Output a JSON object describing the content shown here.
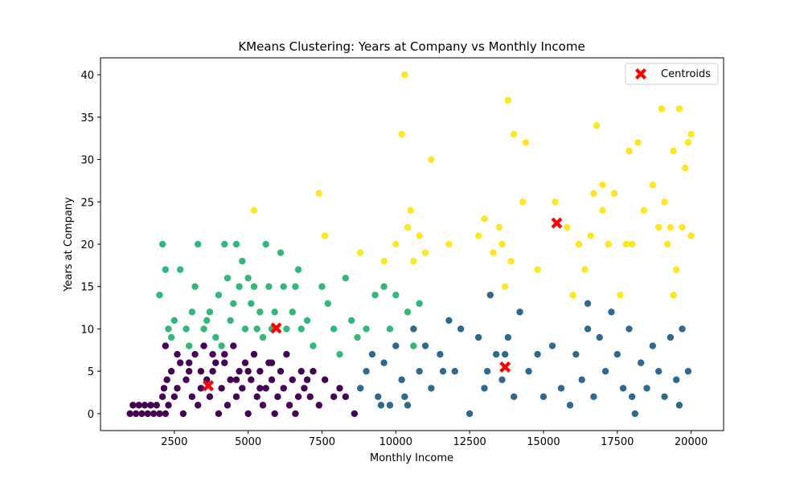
{
  "chart_data": {
    "type": "scatter",
    "title": "KMeans Clustering: Years at Company vs Monthly Income",
    "xlabel": "Monthly Income",
    "ylabel": "Years at Company",
    "xlim": [
      0,
      21100
    ],
    "ylim": [
      -2,
      42
    ],
    "x_ticks": [
      2500,
      5000,
      7500,
      10000,
      12500,
      15000,
      17500,
      20000
    ],
    "y_ticks": [
      0,
      5,
      10,
      15,
      20,
      25,
      30,
      35,
      40
    ],
    "grid": false,
    "legend_position": "top-right",
    "legend": [
      "Centroids"
    ],
    "colors": {
      "cluster_0": "#440154",
      "cluster_1": "#31688e",
      "cluster_2": "#35b779",
      "cluster_3": "#fde725",
      "centroid": "#ff0000"
    },
    "clusters": [
      {
        "color": "#440154",
        "points": [
          [
            1000,
            0
          ],
          [
            1100,
            1
          ],
          [
            1200,
            0
          ],
          [
            1300,
            1
          ],
          [
            1400,
            0
          ],
          [
            1500,
            1
          ],
          [
            1600,
            0
          ],
          [
            1700,
            1
          ],
          [
            1800,
            0
          ],
          [
            1900,
            1
          ],
          [
            2000,
            0
          ],
          [
            2100,
            2
          ],
          [
            2150,
            3
          ],
          [
            2200,
            0
          ],
          [
            2250,
            4
          ],
          [
            2300,
            1
          ],
          [
            2400,
            5
          ],
          [
            2500,
            2
          ],
          [
            2600,
            3
          ],
          [
            2700,
            6
          ],
          [
            2800,
            0
          ],
          [
            2900,
            4
          ],
          [
            3000,
            5
          ],
          [
            3100,
            2
          ],
          [
            3200,
            7
          ],
          [
            3300,
            1
          ],
          [
            3400,
            3
          ],
          [
            3500,
            8
          ],
          [
            3600,
            4
          ],
          [
            3700,
            2
          ],
          [
            3800,
            5
          ],
          [
            3900,
            6
          ],
          [
            4000,
            0
          ],
          [
            4100,
            3
          ],
          [
            4200,
            7
          ],
          [
            4300,
            1
          ],
          [
            4400,
            4
          ],
          [
            4500,
            8
          ],
          [
            4600,
            2
          ],
          [
            4700,
            5
          ],
          [
            4800,
            3
          ],
          [
            4900,
            6
          ],
          [
            5000,
            0
          ],
          [
            5100,
            4
          ],
          [
            5200,
            7
          ],
          [
            5300,
            2
          ],
          [
            5400,
            5
          ],
          [
            5500,
            1
          ],
          [
            5600,
            3
          ],
          [
            5700,
            6
          ],
          [
            5800,
            4
          ],
          [
            5900,
            0
          ],
          [
            6000,
            2
          ],
          [
            6100,
            5
          ],
          [
            6200,
            3
          ],
          [
            6300,
            7
          ],
          [
            6400,
            1
          ],
          [
            6500,
            4
          ],
          [
            6600,
            0
          ],
          [
            6700,
            2
          ],
          [
            6800,
            5
          ],
          [
            6900,
            3
          ],
          [
            7000,
            4
          ],
          [
            7100,
            2
          ],
          [
            7200,
            5
          ],
          [
            7400,
            1
          ],
          [
            7600,
            4
          ],
          [
            7900,
            2
          ],
          [
            8100,
            3
          ],
          [
            8300,
            2
          ],
          [
            8600,
            0
          ],
          [
            2200,
            8
          ],
          [
            2600,
            7
          ],
          [
            3000,
            6
          ],
          [
            3400,
            5
          ],
          [
            3800,
            7
          ],
          [
            4200,
            6
          ],
          [
            4600,
            4
          ],
          [
            5000,
            5
          ],
          [
            5400,
            3
          ],
          [
            5800,
            6
          ]
        ]
      },
      {
        "color": "#31688e",
        "points": [
          [
            8800,
            3
          ],
          [
            9000,
            5
          ],
          [
            9200,
            7
          ],
          [
            9400,
            2
          ],
          [
            9600,
            6
          ],
          [
            9800,
            1
          ],
          [
            10000,
            8
          ],
          [
            10200,
            4
          ],
          [
            10400,
            1
          ],
          [
            10600,
            10
          ],
          [
            10800,
            5
          ],
          [
            11000,
            8
          ],
          [
            11200,
            3
          ],
          [
            11500,
            7
          ],
          [
            11800,
            11
          ],
          [
            12000,
            5
          ],
          [
            12200,
            10
          ],
          [
            12500,
            0
          ],
          [
            12800,
            9
          ],
          [
            13000,
            3
          ],
          [
            13200,
            14
          ],
          [
            13400,
            7
          ],
          [
            13600,
            4
          ],
          [
            13800,
            9
          ],
          [
            14000,
            2
          ],
          [
            14200,
            12
          ],
          [
            14500,
            5
          ],
          [
            14800,
            7
          ],
          [
            15000,
            2
          ],
          [
            15300,
            8
          ],
          [
            15600,
            3
          ],
          [
            15900,
            1
          ],
          [
            16100,
            7
          ],
          [
            16300,
            4
          ],
          [
            16500,
            10
          ],
          [
            16700,
            2
          ],
          [
            16900,
            9
          ],
          [
            17100,
            5
          ],
          [
            17300,
            12
          ],
          [
            17500,
            7
          ],
          [
            17700,
            3
          ],
          [
            17900,
            10
          ],
          [
            18100,
            0
          ],
          [
            18300,
            6
          ],
          [
            18500,
            3
          ],
          [
            18700,
            8
          ],
          [
            18900,
            5
          ],
          [
            19100,
            2
          ],
          [
            19300,
            9
          ],
          [
            19500,
            4
          ],
          [
            19700,
            10
          ],
          [
            19900,
            5
          ],
          [
            9500,
            1
          ],
          [
            10300,
            2
          ],
          [
            11600,
            5
          ],
          [
            13100,
            5
          ],
          [
            13700,
            7
          ],
          [
            16500,
            13
          ],
          [
            18000,
            2
          ],
          [
            19600,
            1
          ]
        ]
      },
      {
        "color": "#35b779",
        "points": [
          [
            2000,
            14
          ],
          [
            2100,
            20
          ],
          [
            2200,
            17
          ],
          [
            2300,
            10
          ],
          [
            2500,
            11
          ],
          [
            2700,
            17
          ],
          [
            2900,
            10
          ],
          [
            3100,
            12
          ],
          [
            3200,
            15
          ],
          [
            3300,
            20
          ],
          [
            3500,
            10
          ],
          [
            3700,
            12
          ],
          [
            3900,
            9
          ],
          [
            4000,
            14
          ],
          [
            4200,
            20
          ],
          [
            4300,
            16
          ],
          [
            4400,
            11
          ],
          [
            4500,
            13
          ],
          [
            4600,
            20
          ],
          [
            4700,
            15
          ],
          [
            4800,
            18
          ],
          [
            4900,
            10
          ],
          [
            5000,
            16
          ],
          [
            5100,
            13
          ],
          [
            5200,
            15
          ],
          [
            5300,
            10
          ],
          [
            5400,
            12
          ],
          [
            5500,
            9
          ],
          [
            5600,
            20
          ],
          [
            5700,
            15
          ],
          [
            5800,
            10
          ],
          [
            5900,
            12
          ],
          [
            6100,
            19
          ],
          [
            6200,
            15
          ],
          [
            6300,
            10
          ],
          [
            6500,
            12
          ],
          [
            6600,
            15
          ],
          [
            6800,
            10
          ],
          [
            7000,
            11
          ],
          [
            7200,
            8
          ],
          [
            7500,
            15
          ],
          [
            7700,
            13
          ],
          [
            7900,
            10
          ],
          [
            8100,
            7
          ],
          [
            8300,
            16
          ],
          [
            8500,
            11
          ],
          [
            8700,
            9
          ],
          [
            9000,
            10
          ],
          [
            9300,
            14
          ],
          [
            9600,
            15
          ],
          [
            9800,
            10
          ],
          [
            10000,
            14
          ],
          [
            10400,
            12
          ],
          [
            10600,
            8
          ],
          [
            10800,
            13
          ],
          [
            2400,
            9
          ],
          [
            3000,
            8
          ],
          [
            3600,
            11
          ],
          [
            4100,
            8
          ],
          [
            6700,
            17
          ]
        ]
      },
      {
        "color": "#fde725",
        "points": [
          [
            5200,
            24
          ],
          [
            7400,
            26
          ],
          [
            7600,
            21
          ],
          [
            8800,
            19
          ],
          [
            9600,
            18
          ],
          [
            10000,
            20
          ],
          [
            10200,
            33
          ],
          [
            10300,
            40
          ],
          [
            10400,
            22
          ],
          [
            10500,
            24
          ],
          [
            10600,
            18
          ],
          [
            10800,
            21
          ],
          [
            11000,
            19
          ],
          [
            11200,
            30
          ],
          [
            11800,
            20
          ],
          [
            12800,
            21
          ],
          [
            13000,
            23
          ],
          [
            13300,
            19
          ],
          [
            13500,
            22
          ],
          [
            13700,
            15
          ],
          [
            13800,
            37
          ],
          [
            13900,
            18
          ],
          [
            14000,
            33
          ],
          [
            14300,
            25
          ],
          [
            14400,
            32
          ],
          [
            14800,
            17
          ],
          [
            15400,
            25
          ],
          [
            15800,
            22
          ],
          [
            16000,
            14
          ],
          [
            16200,
            20
          ],
          [
            16400,
            17
          ],
          [
            16600,
            21
          ],
          [
            16800,
            34
          ],
          [
            17000,
            24
          ],
          [
            17200,
            20
          ],
          [
            17400,
            26
          ],
          [
            17600,
            14
          ],
          [
            17800,
            20
          ],
          [
            17900,
            31
          ],
          [
            18200,
            32
          ],
          [
            18400,
            24
          ],
          [
            18700,
            27
          ],
          [
            18900,
            22
          ],
          [
            19000,
            36
          ],
          [
            19100,
            25
          ],
          [
            19200,
            20
          ],
          [
            19300,
            22
          ],
          [
            19400,
            31
          ],
          [
            19500,
            17
          ],
          [
            19600,
            36
          ],
          [
            19700,
            22
          ],
          [
            19800,
            29
          ],
          [
            19900,
            32
          ],
          [
            20000,
            33
          ],
          [
            20000,
            21
          ],
          [
            16700,
            26
          ],
          [
            17000,
            27
          ],
          [
            18000,
            20
          ],
          [
            19400,
            14
          ],
          [
            13600,
            20
          ]
        ]
      }
    ],
    "centroids": [
      [
        3650,
        3.3
      ],
      [
        5950,
        10.1
      ],
      [
        13700,
        5.5
      ],
      [
        15450,
        22.5
      ]
    ]
  }
}
